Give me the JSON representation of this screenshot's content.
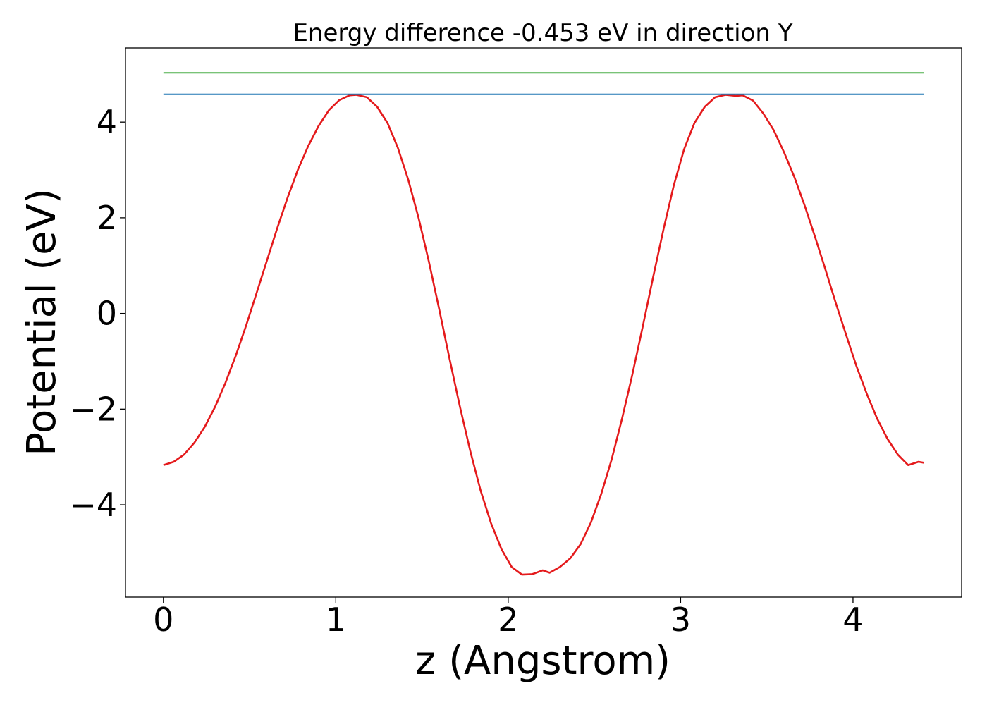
{
  "chart_data": {
    "type": "line",
    "title": "Energy difference -0.453 eV in direction Y",
    "xlabel": "z (Angstrom)",
    "ylabel": "Potential (eV)",
    "xlim": [
      -0.22,
      4.63
    ],
    "ylim": [
      -5.93,
      5.55
    ],
    "xticks": [
      {
        "value": 0,
        "label": "0"
      },
      {
        "value": 1,
        "label": "1"
      },
      {
        "value": 2,
        "label": "2"
      },
      {
        "value": 3,
        "label": "3"
      },
      {
        "value": 4,
        "label": "4"
      }
    ],
    "yticks": [
      {
        "value": -4,
        "label": "−4"
      },
      {
        "value": -2,
        "label": "−2"
      },
      {
        "value": 0,
        "label": "0"
      },
      {
        "value": 2,
        "label": "2"
      },
      {
        "value": 4,
        "label": "4"
      }
    ],
    "grid": false,
    "series": [
      {
        "color": "#e41a1c",
        "x": [
          0.0,
          0.06,
          0.12,
          0.18,
          0.24,
          0.3,
          0.36,
          0.42,
          0.48,
          0.54,
          0.6,
          0.66,
          0.72,
          0.78,
          0.84,
          0.9,
          0.96,
          1.02,
          1.08,
          1.12,
          1.18,
          1.24,
          1.3,
          1.36,
          1.42,
          1.48,
          1.54,
          1.6,
          1.66,
          1.72,
          1.78,
          1.84,
          1.9,
          1.96,
          2.02,
          2.08,
          2.14,
          2.2,
          2.24,
          2.3,
          2.36,
          2.42,
          2.48,
          2.54,
          2.6,
          2.66,
          2.72,
          2.78,
          2.84,
          2.9,
          2.96,
          3.02,
          3.08,
          3.14,
          3.2,
          3.26,
          3.32,
          3.36,
          3.42,
          3.48,
          3.54,
          3.6,
          3.66,
          3.72,
          3.78,
          3.84,
          3.9,
          3.96,
          4.02,
          4.08,
          4.14,
          4.2,
          4.26,
          4.32,
          4.38,
          4.41
        ],
        "y": [
          -3.17,
          -3.1,
          -2.95,
          -2.7,
          -2.37,
          -1.95,
          -1.45,
          -0.88,
          -0.25,
          0.42,
          1.1,
          1.78,
          2.42,
          3.0,
          3.5,
          3.92,
          4.25,
          4.46,
          4.56,
          4.57,
          4.52,
          4.32,
          3.98,
          3.46,
          2.8,
          2.0,
          1.08,
          0.08,
          -0.95,
          -1.95,
          -2.88,
          -3.7,
          -4.38,
          -4.92,
          -5.3,
          -5.46,
          -5.45,
          -5.37,
          -5.42,
          -5.3,
          -5.12,
          -4.82,
          -4.37,
          -3.77,
          -3.05,
          -2.2,
          -1.28,
          -0.28,
          0.75,
          1.75,
          2.67,
          3.43,
          3.98,
          4.32,
          4.52,
          4.57,
          4.55,
          4.56,
          4.45,
          4.18,
          3.83,
          3.37,
          2.85,
          2.25,
          1.6,
          0.92,
          0.22,
          -0.45,
          -1.1,
          -1.68,
          -2.2,
          -2.62,
          -2.95,
          -3.17,
          -3.1,
          -3.12
        ]
      },
      {
        "color": "#1f77b4",
        "x": [
          0.0,
          4.41
        ],
        "y": [
          4.58,
          4.58
        ]
      },
      {
        "color": "#4daf4a",
        "x": [
          0.0,
          4.41
        ],
        "y": [
          5.03,
          5.03
        ]
      }
    ]
  }
}
